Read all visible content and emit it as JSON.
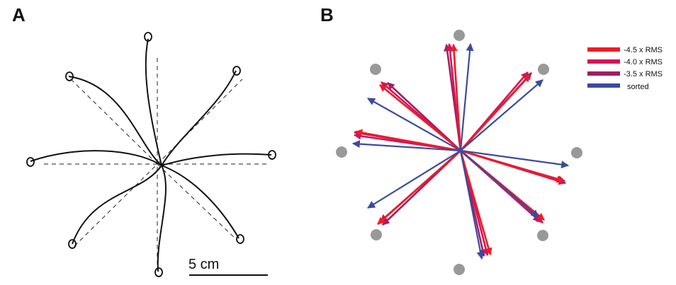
{
  "panels": {
    "a": {
      "letter": "A",
      "scale_bar_label": "5 cm",
      "trajectories": 8,
      "targets": 8
    },
    "b": {
      "letter": "B",
      "targets": 8,
      "legend": [
        {
          "label": "-4.5 x RMS",
          "color": "#ee1c25"
        },
        {
          "label": "-4.0 x RMS",
          "color": "#d4145a"
        },
        {
          "label": "-3.5 x RMS",
          "color": "#9e1f63"
        },
        {
          "label": "sorted",
          "color": "#3a4ba0"
        }
      ]
    }
  },
  "colors": {
    "trajectory": "#111111",
    "target_dot": "#999999",
    "dashed_guide": "#222222"
  }
}
